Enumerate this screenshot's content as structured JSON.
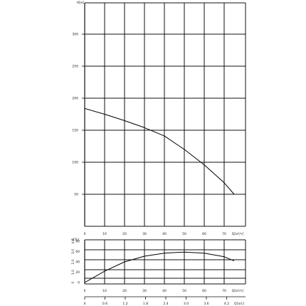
{
  "chart_data": [
    {
      "type": "line",
      "ylabel": "H[м]",
      "xlabel": "Q[м³/ч]",
      "x_ticks": [
        "0",
        "10",
        "20",
        "30",
        "40",
        "50",
        "60",
        "70"
      ],
      "y_ticks": [
        "50",
        "100",
        "150",
        "200",
        "250",
        "300"
      ],
      "xlim": [
        0,
        80
      ],
      "ylim": [
        0,
        320
      ],
      "grid": true,
      "series": [
        {
          "x": [
            0,
            10,
            20,
            30,
            40,
            50,
            60,
            70,
            75
          ],
          "y": [
            184,
            175,
            165,
            154,
            141,
            120,
            96,
            68,
            50
          ]
        }
      ]
    },
    {
      "type": "line",
      "ylabel": "η[%]",
      "xlabel": "Q[м³/ч]",
      "y_ticks": [
        "0",
        "20",
        "40",
        "60",
        "80"
      ],
      "x_ticks": [
        "0",
        "10",
        "20",
        "30",
        "40",
        "50",
        "60",
        "70"
      ],
      "xlim": [
        0,
        80
      ],
      "ylim": [
        0,
        80
      ],
      "grid": true,
      "series": [
        {
          "x": [
            0,
            10,
            20,
            30,
            40,
            50,
            60,
            70,
            75
          ],
          "y": [
            0,
            22,
            40,
            51,
            57,
            59,
            57,
            50,
            42
          ]
        }
      ]
    }
  ],
  "secondary_axis": {
    "ticks": [
      "0",
      "0.6",
      "1.2",
      "1.8",
      "2.4",
      "3.0",
      "3.6",
      "4.2"
    ],
    "label": "Q[л/с]"
  },
  "left_axis_values": [
    "0",
    "1.0",
    "2.0",
    "3.0",
    "4.0"
  ]
}
